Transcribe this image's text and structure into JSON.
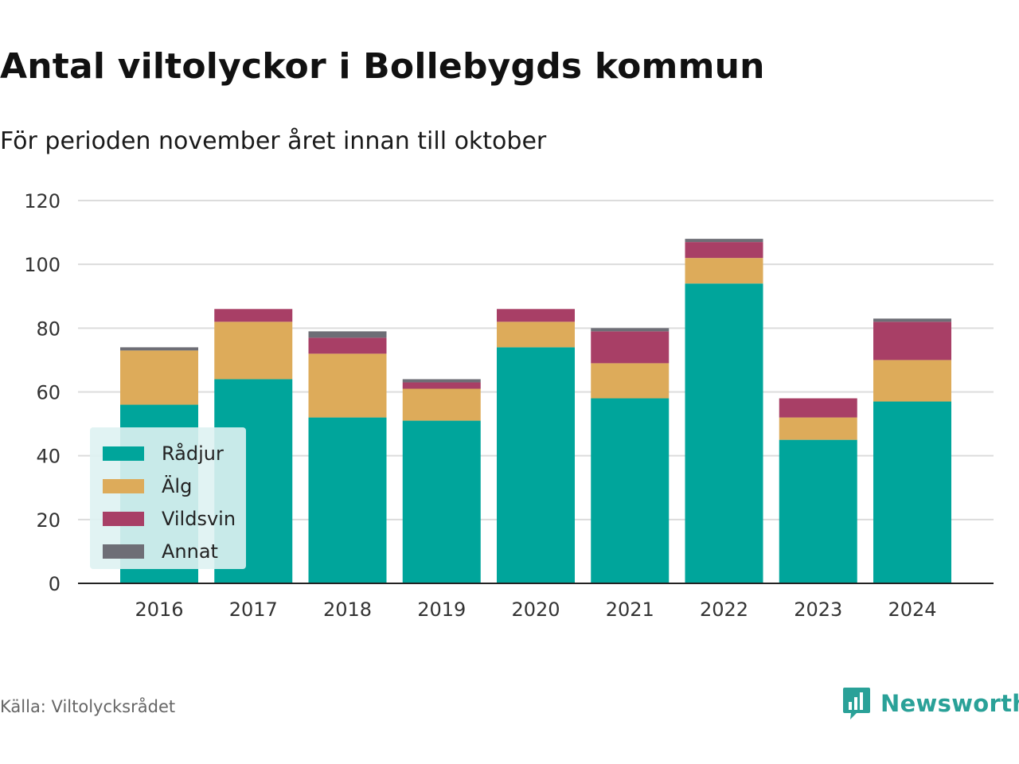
{
  "header": {
    "title": "Antal viltolyckor i Bollebygds kommun",
    "subtitle": "För perioden november året innan till oktober"
  },
  "footer": {
    "source": "Källa: Viltolycksrådet",
    "brand": "Newsworthy",
    "brand_icon": "bar-chart-speech-bubble-icon",
    "brand_color": "#2aa198"
  },
  "chart_data": {
    "type": "bar",
    "stacked": true,
    "categories": [
      "2016",
      "2017",
      "2018",
      "2019",
      "2020",
      "2021",
      "2022",
      "2023",
      "2024"
    ],
    "series": [
      {
        "name": "Rådjur",
        "color": "#00a59b",
        "values": [
          56,
          64,
          52,
          51,
          74,
          58,
          94,
          45,
          57
        ]
      },
      {
        "name": "Älg",
        "color": "#ddab5a",
        "values": [
          17,
          18,
          20,
          10,
          8,
          11,
          8,
          7,
          13
        ]
      },
      {
        "name": "Vildsvin",
        "color": "#a83f66",
        "values": [
          0,
          4,
          5,
          2,
          4,
          10,
          5,
          6,
          12
        ]
      },
      {
        "name": "Annat",
        "color": "#6e6e76",
        "values": [
          1,
          0,
          2,
          1,
          0,
          1,
          1,
          0,
          1
        ]
      }
    ],
    "yticks": [
      0,
      20,
      40,
      60,
      80,
      100,
      120
    ],
    "ylim": [
      0,
      120
    ],
    "xlabel": "",
    "ylabel": "",
    "grid": true,
    "legend_position": "bottom-left"
  }
}
